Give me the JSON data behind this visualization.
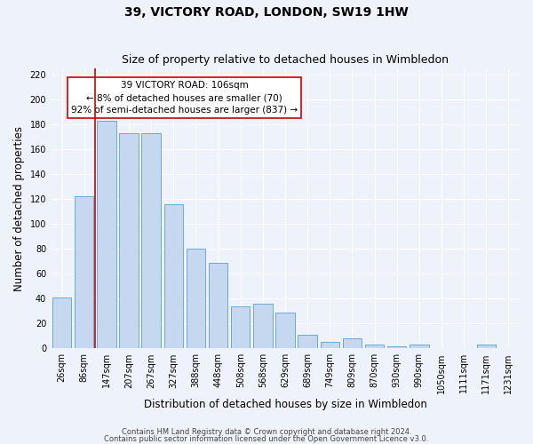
{
  "title": "39, VICTORY ROAD, LONDON, SW19 1HW",
  "subtitle": "Size of property relative to detached houses in Wimbledon",
  "xlabel": "Distribution of detached houses by size in Wimbledon",
  "ylabel": "Number of detached properties",
  "footer_line1": "Contains HM Land Registry data © Crown copyright and database right 2024.",
  "footer_line2": "Contains public sector information licensed under the Open Government Licence v3.0.",
  "bin_labels": [
    "26sqm",
    "86sqm",
    "147sqm",
    "207sqm",
    "267sqm",
    "327sqm",
    "388sqm",
    "448sqm",
    "508sqm",
    "568sqm",
    "629sqm",
    "689sqm",
    "749sqm",
    "809sqm",
    "870sqm",
    "930sqm",
    "990sqm",
    "1050sqm",
    "1111sqm",
    "1171sqm",
    "1231sqm"
  ],
  "bar_heights": [
    41,
    122,
    183,
    173,
    173,
    116,
    80,
    69,
    34,
    36,
    29,
    11,
    5,
    8,
    3,
    2,
    3,
    0,
    0,
    3,
    0
  ],
  "bar_color": "#c5d8f0",
  "bar_edge_color": "#6aaad4",
  "vline_x": 1.5,
  "vline_color": "#cc0000",
  "annotation_title": "39 VICTORY ROAD: 106sqm",
  "annotation_line1": "← 8% of detached houses are smaller (70)",
  "annotation_line2": "92% of semi-detached houses are larger (837) →",
  "annotation_box_color": "#cc0000",
  "ylim": [
    0,
    225
  ],
  "yticks": [
    0,
    20,
    40,
    60,
    80,
    100,
    120,
    140,
    160,
    180,
    200,
    220
  ],
  "background_color": "#eef2fa",
  "grid_color": "#ffffff",
  "title_fontsize": 10,
  "subtitle_fontsize": 9,
  "axis_label_fontsize": 8.5,
  "tick_fontsize": 7,
  "footer_fontsize": 6,
  "annotation_fontsize": 7.5
}
